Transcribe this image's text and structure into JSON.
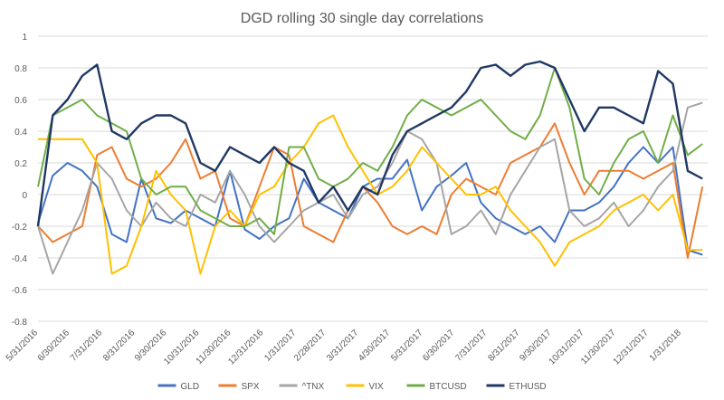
{
  "chart_data": {
    "type": "line",
    "title": "DGD rolling 30 single day correlations",
    "xlabel": "",
    "ylabel": "",
    "ylim": [
      -0.8,
      1
    ],
    "yticks": [
      "-0.8",
      "-0.6",
      "-0.4",
      "-0.2",
      "0",
      "0.2",
      "0.4",
      "0.6",
      "0.8",
      "1"
    ],
    "xlim": [
      "2016-05-31",
      "2018-02-25"
    ],
    "xticks": [
      "5/31/2016",
      "6/30/2016",
      "7/31/2016",
      "8/31/2016",
      "9/30/2016",
      "10/31/2016",
      "11/30/2016",
      "12/31/2016",
      "1/31/2017",
      "2/28/2017",
      "3/31/2017",
      "4/30/2017",
      "5/31/2017",
      "6/30/2017",
      "7/31/2017",
      "8/31/2017",
      "9/30/2017",
      "10/31/2017",
      "11/30/2017",
      "12/31/2017",
      "1/31/2018"
    ],
    "grid": "horizontal",
    "legend_position": "bottom",
    "x": [
      "2016-05-31",
      "2016-06-14",
      "2016-06-28",
      "2016-07-12",
      "2016-07-26",
      "2016-08-09",
      "2016-08-23",
      "2016-09-06",
      "2016-09-20",
      "2016-10-04",
      "2016-10-18",
      "2016-11-01",
      "2016-11-15",
      "2016-11-29",
      "2016-12-13",
      "2016-12-27",
      "2017-01-10",
      "2017-01-24",
      "2017-02-07",
      "2017-02-21",
      "2017-03-07",
      "2017-03-21",
      "2017-04-04",
      "2017-04-18",
      "2017-05-02",
      "2017-05-16",
      "2017-05-30",
      "2017-06-13",
      "2017-06-27",
      "2017-07-11",
      "2017-07-25",
      "2017-08-08",
      "2017-08-22",
      "2017-09-05",
      "2017-09-19",
      "2017-10-03",
      "2017-10-17",
      "2017-10-31",
      "2017-11-14",
      "2017-11-28",
      "2017-12-12",
      "2017-12-26",
      "2018-01-09",
      "2018-01-23",
      "2018-02-06",
      "2018-02-20"
    ],
    "series": [
      {
        "name": "GLD",
        "color": "#4472c4",
        "values": [
          -0.18,
          0.12,
          0.2,
          0.15,
          0.05,
          -0.25,
          -0.3,
          0.1,
          -0.15,
          -0.18,
          -0.1,
          -0.15,
          -0.2,
          0.15,
          -0.22,
          -0.28,
          -0.2,
          -0.15,
          0.1,
          -0.05,
          -0.1,
          -0.15,
          0.05,
          0.1,
          0.1,
          0.22,
          -0.1,
          0.05,
          0.12,
          0.2,
          -0.05,
          -0.15,
          -0.2,
          -0.25,
          -0.2,
          -0.3,
          -0.1,
          -0.1,
          -0.05,
          0.05,
          0.2,
          0.3,
          0.2,
          0.3,
          -0.35,
          -0.38
        ]
      },
      {
        "name": "SPX",
        "color": "#ed7d31",
        "values": [
          -0.2,
          -0.3,
          -0.25,
          -0.2,
          0.25,
          0.3,
          0.1,
          0.05,
          0.1,
          0.2,
          0.35,
          0.1,
          0.15,
          -0.15,
          -0.2,
          0.05,
          0.3,
          0.25,
          -0.2,
          -0.25,
          -0.3,
          -0.1,
          0.05,
          -0.05,
          -0.2,
          -0.25,
          -0.2,
          -0.25,
          0.0,
          0.1,
          0.05,
          0.0,
          0.2,
          0.25,
          0.3,
          0.45,
          0.2,
          0.0,
          0.15,
          0.15,
          0.15,
          0.1,
          0.15,
          0.2,
          -0.4,
          0.05
        ]
      },
      {
        "name": "^TNX",
        "color": "#a5a5a5",
        "values": [
          -0.2,
          -0.5,
          -0.3,
          -0.1,
          0.2,
          0.1,
          -0.1,
          -0.2,
          -0.05,
          -0.15,
          -0.2,
          0.0,
          -0.05,
          0.15,
          0.0,
          -0.2,
          -0.3,
          -0.2,
          -0.1,
          -0.05,
          0.0,
          -0.15,
          0.0,
          0.05,
          0.2,
          0.4,
          0.35,
          0.2,
          -0.25,
          -0.2,
          -0.1,
          -0.25,
          0.0,
          0.15,
          0.3,
          0.35,
          -0.1,
          -0.2,
          -0.15,
          -0.05,
          -0.2,
          -0.1,
          0.05,
          0.15,
          0.55,
          0.58
        ]
      },
      {
        "name": "VIX",
        "color": "#ffc000",
        "values": [
          0.35,
          0.35,
          0.35,
          0.35,
          0.2,
          -0.5,
          -0.45,
          -0.2,
          0.15,
          0.0,
          -0.1,
          -0.5,
          -0.2,
          -0.1,
          -0.2,
          0.0,
          0.05,
          0.2,
          0.3,
          0.45,
          0.5,
          0.3,
          0.15,
          0.0,
          0.05,
          0.15,
          0.3,
          0.2,
          0.1,
          0.0,
          0.0,
          0.05,
          -0.1,
          -0.2,
          -0.3,
          -0.45,
          -0.3,
          -0.25,
          -0.2,
          -0.1,
          -0.05,
          0.0,
          -0.1,
          0.0,
          -0.35,
          -0.35
        ]
      },
      {
        "name": "BTCUSD",
        "color": "#70ad47",
        "values": [
          0.05,
          0.5,
          0.55,
          0.6,
          0.5,
          0.45,
          0.4,
          0.1,
          0.0,
          0.05,
          0.05,
          -0.1,
          -0.15,
          -0.2,
          -0.2,
          -0.15,
          -0.25,
          0.3,
          0.3,
          0.1,
          0.05,
          0.1,
          0.2,
          0.15,
          0.3,
          0.5,
          0.6,
          0.55,
          0.5,
          0.55,
          0.6,
          0.5,
          0.4,
          0.35,
          0.5,
          0.8,
          0.55,
          0.1,
          0.0,
          0.2,
          0.35,
          0.4,
          0.2,
          0.5,
          0.25,
          0.32
        ]
      },
      {
        "name": "ETHUSD",
        "color": "#203864",
        "values": [
          -0.2,
          0.5,
          0.6,
          0.75,
          0.82,
          0.4,
          0.35,
          0.45,
          0.5,
          0.5,
          0.45,
          0.2,
          0.15,
          0.3,
          0.25,
          0.2,
          0.3,
          0.2,
          0.15,
          -0.05,
          0.05,
          -0.1,
          0.05,
          0.0,
          0.25,
          0.4,
          0.45,
          0.5,
          0.55,
          0.65,
          0.8,
          0.82,
          0.75,
          0.82,
          0.84,
          0.8,
          0.6,
          0.4,
          0.55,
          0.55,
          0.5,
          0.45,
          0.78,
          0.7,
          0.15,
          0.1
        ]
      }
    ]
  }
}
